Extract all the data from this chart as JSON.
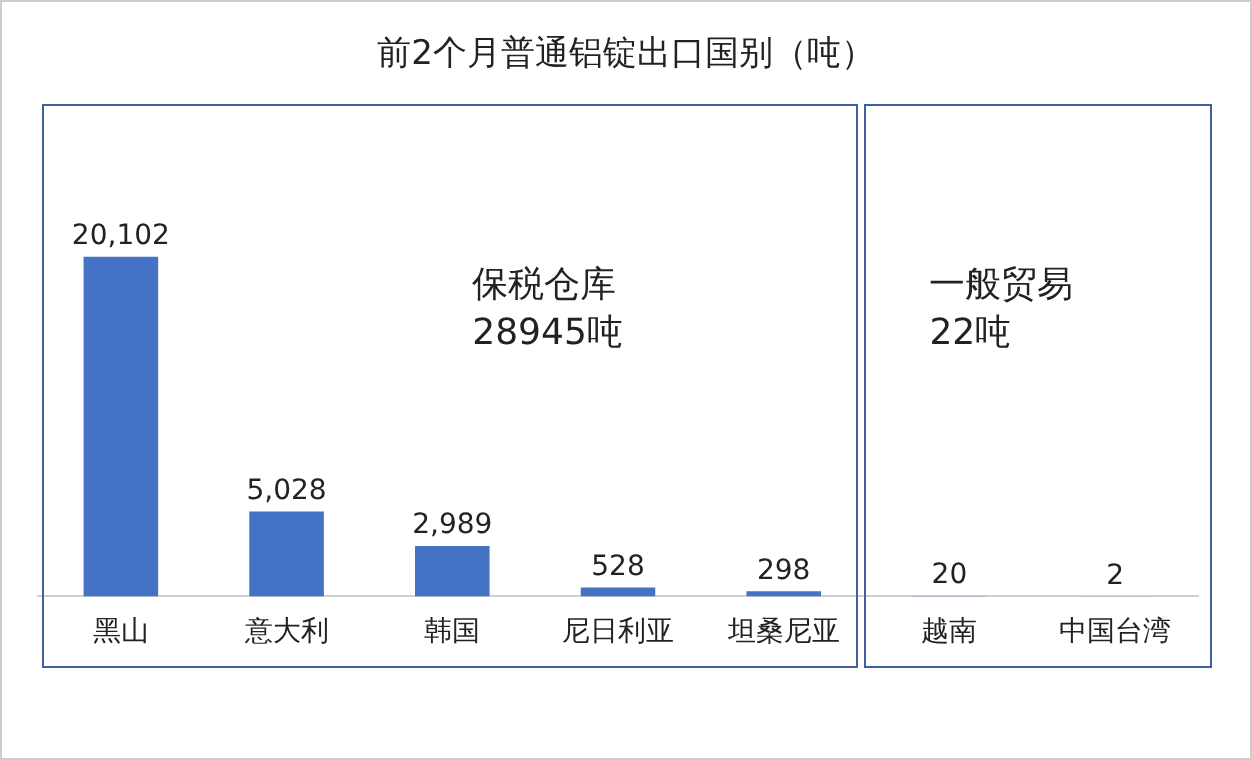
{
  "chart_data": {
    "type": "bar",
    "title": "前2个月普通铝锭出口国别（吨）",
    "categories": [
      "黑山",
      "意大利",
      "韩国",
      "尼日利亚",
      "坦桑尼亚",
      "越南",
      "中国台湾"
    ],
    "values": [
      20102,
      5028,
      2989,
      528,
      298,
      20,
      2
    ],
    "color": "#4472c4",
    "value_labels": [
      "20,102",
      "5,028",
      "2,989",
      "528",
      "298",
      "20",
      "2"
    ],
    "grid": false,
    "legend": false,
    "tick_labels": "x",
    "annotations": [
      "保税仓库\n28945吨",
      "一般贸易\n22吨"
    ]
  }
}
